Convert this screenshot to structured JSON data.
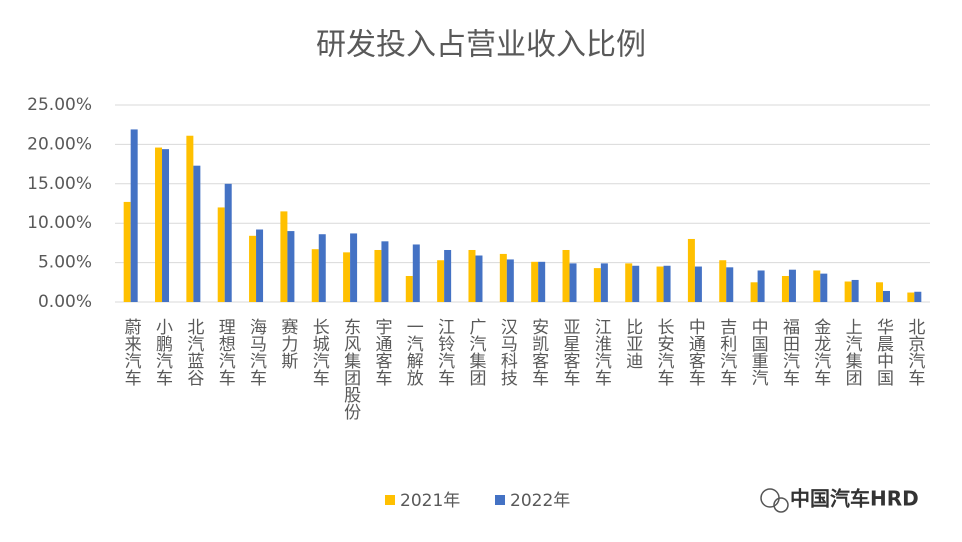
{
  "chart_data": {
    "type": "bar",
    "title": "研发投入占营业收入比例",
    "categories": [
      "蔚来汽车",
      "小鹏汽车",
      "北汽蓝谷",
      "理想汽车",
      "海马汽车",
      "赛力斯",
      "长城汽车",
      "东风集团股份",
      "宇通客车",
      "一汽解放",
      "江铃汽车",
      "广汽集团",
      "汉马科技",
      "安凯客车",
      "亚星客车",
      "江淮汽车",
      "比亚迪",
      "长安汽车",
      "中通客车",
      "吉利汽车",
      "中国重汽",
      "福田汽车",
      "金龙汽车",
      "上汽集团",
      "华晨中国",
      "北京汽车"
    ],
    "series": [
      {
        "name": "2021年",
        "color": "#ffc000",
        "values": [
          12.7,
          19.6,
          21.1,
          12.0,
          8.4,
          11.5,
          6.7,
          6.3,
          6.6,
          3.3,
          5.3,
          6.6,
          6.1,
          5.1,
          6.6,
          4.3,
          4.9,
          4.5,
          8.0,
          5.3,
          2.5,
          3.3,
          4.0,
          2.6,
          2.5,
          1.2
        ]
      },
      {
        "name": "2022年",
        "color": "#4472c4",
        "values": [
          21.9,
          19.4,
          17.3,
          15.0,
          9.2,
          9.0,
          8.6,
          8.7,
          7.7,
          7.3,
          6.6,
          5.9,
          5.4,
          5.1,
          4.9,
          4.9,
          4.6,
          4.6,
          4.5,
          4.4,
          4.0,
          4.1,
          3.6,
          2.8,
          1.4,
          1.3
        ]
      }
    ],
    "ylim": [
      0,
      25
    ],
    "yticks": [
      {
        "value": 0,
        "label": "0.00%"
      },
      {
        "value": 5,
        "label": "5.00%"
      },
      {
        "value": 10,
        "label": "10.00%"
      },
      {
        "value": 15,
        "label": "15.00%"
      },
      {
        "value": 20,
        "label": "20.00%"
      },
      {
        "value": 25,
        "label": "25.00%"
      }
    ],
    "grid": true,
    "legend": "bottom",
    "watermark": "中国汽车HRD"
  }
}
